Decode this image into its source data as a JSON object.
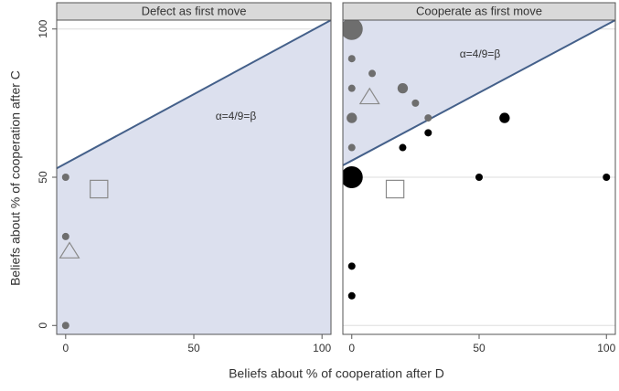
{
  "axis_labels": {
    "x": "Beliefs about % of cooperation after D",
    "y": "Beliefs about % of cooperation after C"
  },
  "chart_data": [
    {
      "type": "scatter",
      "title": "Defect as first move",
      "annotation": "α=4/9=β",
      "xlim": [
        -3.5,
        103.5
      ],
      "ylim": [
        -3,
        103
      ],
      "xticks": [
        0,
        50,
        100
      ],
      "yticks": [
        0,
        50,
        100
      ],
      "grid": true,
      "boundary": {
        "x": [
          -3.5,
          103.5
        ],
        "y": [
          53,
          103
        ],
        "shade": "below",
        "color": "#44608a",
        "fill": "#dce0ee"
      },
      "series": [
        {
          "marker": "circle",
          "color": "#6e6e6e",
          "x": [
            0,
            0,
            0
          ],
          "y": [
            50,
            30,
            0
          ],
          "size": [
            1,
            1,
            1
          ]
        },
        {
          "marker": "triangle",
          "color": "#8a8a8a",
          "x": [
            1.5
          ],
          "y": [
            25
          ],
          "size": [
            4
          ]
        },
        {
          "marker": "square",
          "color": "#8a8a8a",
          "x": [
            13
          ],
          "y": [
            46
          ],
          "size": [
            4
          ]
        }
      ]
    },
    {
      "type": "scatter",
      "title": "Cooperate as first move",
      "annotation": "α=4/9=β",
      "xlim": [
        -3.5,
        103.5
      ],
      "ylim": [
        -3,
        103
      ],
      "xticks": [
        0,
        50,
        100
      ],
      "grid": true,
      "boundary": {
        "x": [
          -3.5,
          103.5
        ],
        "y": [
          54,
          103
        ],
        "shade": "above",
        "color": "#44608a",
        "fill": "#dce0ee"
      },
      "series": [
        {
          "marker": "circle",
          "color": "#6e6e6e",
          "x": [
            0,
            0,
            0,
            0,
            0,
            8,
            20,
            25,
            30
          ],
          "y": [
            100,
            90,
            80,
            70,
            60,
            85,
            80,
            75,
            70
          ],
          "size": [
            9,
            1,
            1,
            2,
            1,
            1,
            2,
            1,
            1
          ]
        },
        {
          "marker": "circle",
          "color": "#000000",
          "x": [
            0,
            20,
            30,
            60,
            50,
            100,
            0,
            0
          ],
          "y": [
            50,
            60,
            65,
            70,
            50,
            50,
            20,
            10
          ],
          "size": [
            9,
            1,
            1,
            2,
            1,
            1,
            1,
            1
          ]
        },
        {
          "marker": "triangle",
          "color": "#8a8a8a",
          "x": [
            7
          ],
          "y": [
            77
          ],
          "size": [
            4
          ]
        },
        {
          "marker": "square",
          "color": "#8a8a8a",
          "x": [
            17
          ],
          "y": [
            46
          ],
          "size": [
            4
          ]
        }
      ]
    }
  ]
}
